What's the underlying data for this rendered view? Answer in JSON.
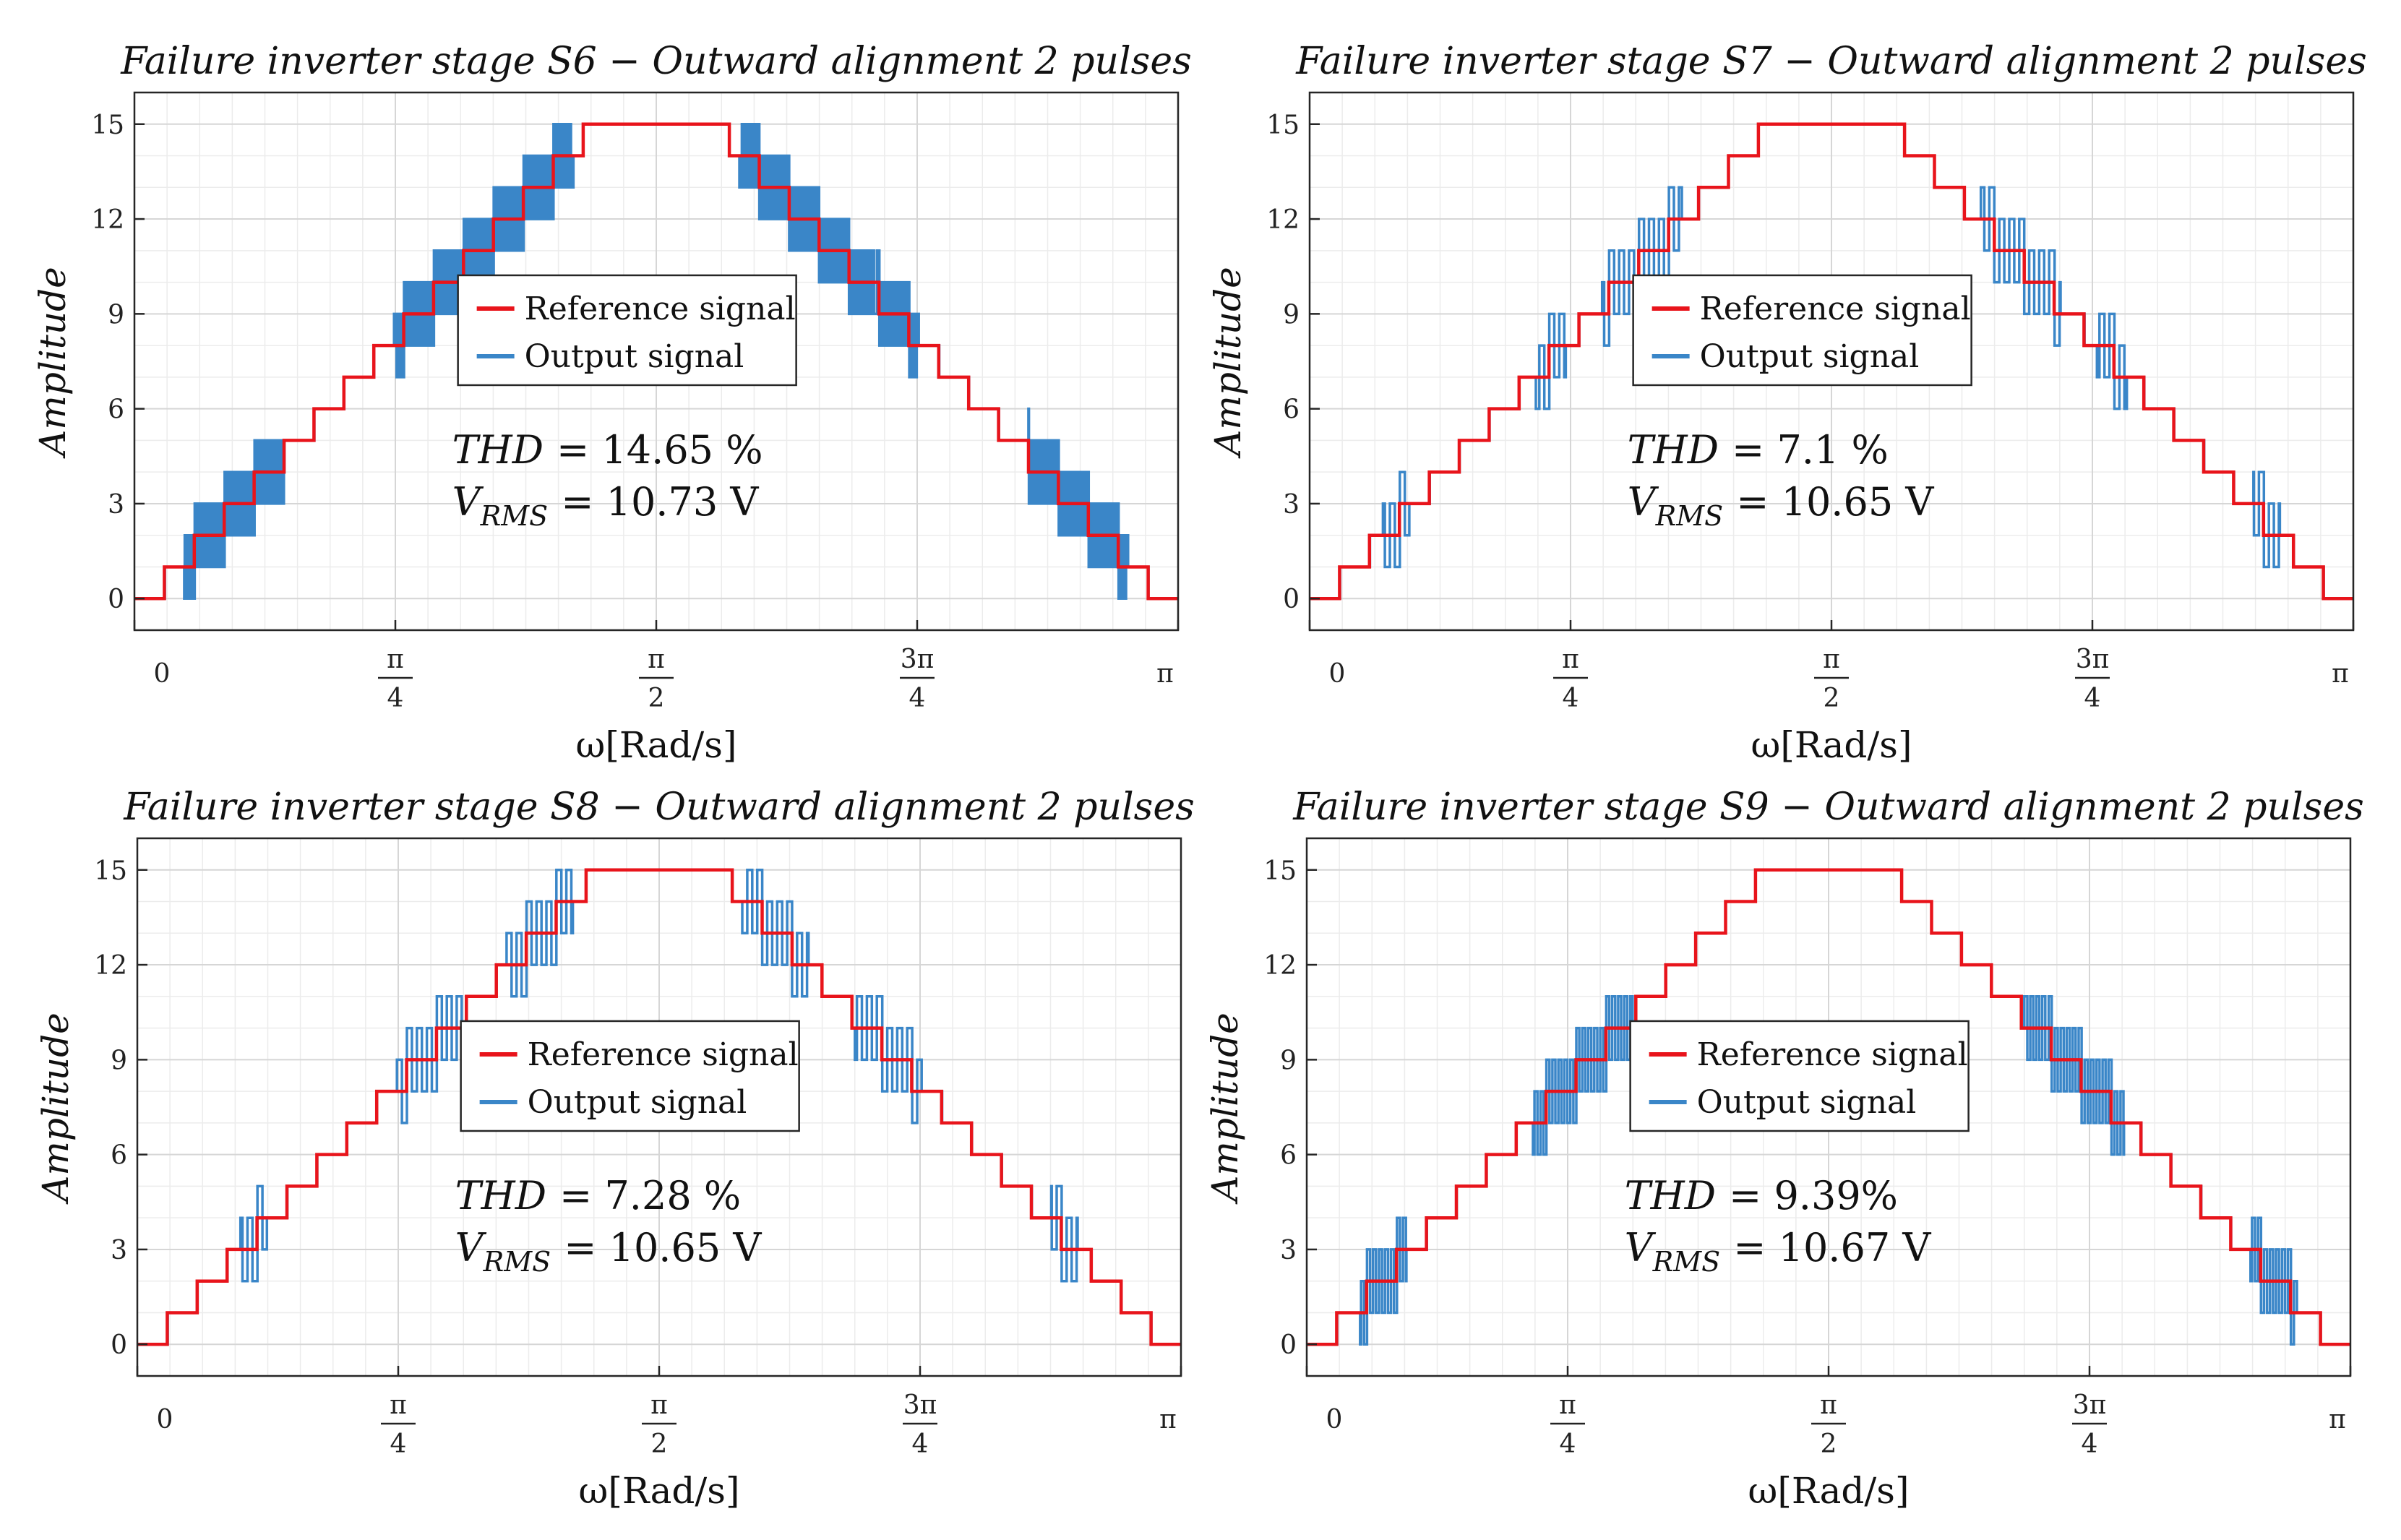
{
  "chart_data": [
    {
      "type": "line",
      "title": "Failure inverter stage S6 − Outward alignment 2 pulses",
      "xlabel": "ω[Rad/s]",
      "ylabel": "Amplitude",
      "xlim": [
        0,
        3.1416
      ],
      "ylim": [
        -1,
        16
      ],
      "yticks": [
        0,
        3,
        6,
        9,
        12,
        15
      ],
      "xticks": [
        {
          "value": 0,
          "num": "0",
          "den": ""
        },
        {
          "value": 0.7854,
          "num": "π",
          "den": "4"
        },
        {
          "value": 1.5708,
          "num": "π",
          "den": "2"
        },
        {
          "value": 2.3562,
          "num": "3π",
          "den": "4"
        },
        {
          "value": 3.1416,
          "num": "π",
          "den": ""
        }
      ],
      "grid": true,
      "legend": {
        "position": "center",
        "entries": [
          "Reference signal",
          "Output signal"
        ]
      },
      "series": [
        {
          "name": "Reference signal",
          "color": "#e8141b",
          "kind": "staircase",
          "levels": 15
        },
        {
          "name": "Output signal",
          "color": "#3a86c8",
          "kind": "pwm",
          "pulse_intervals": [
            [
              0.15,
              0.45
            ],
            [
              0.78,
              1.32
            ],
            [
              1.82,
              2.36
            ],
            [
              2.69,
              2.99
            ]
          ],
          "pulse_count": 6
        }
      ],
      "annotation": {
        "thd_label": "THD",
        "thd_value": "= 14.65 %",
        "vrms_main": "V",
        "vrms_sub": "RMS",
        "vrms_value": "= 10.73 V"
      }
    },
    {
      "type": "line",
      "title": "Failure inverter stage S7 − Outward alignment 2 pulses",
      "xlabel": "ω[Rad/s]",
      "ylabel": "Amplitude",
      "xlim": [
        0,
        3.1416
      ],
      "ylim": [
        -1,
        16
      ],
      "yticks": [
        0,
        3,
        6,
        9,
        12,
        15
      ],
      "xticks": [
        {
          "value": 0,
          "num": "0",
          "den": ""
        },
        {
          "value": 0.7854,
          "num": "π",
          "den": "4"
        },
        {
          "value": 1.5708,
          "num": "π",
          "den": "2"
        },
        {
          "value": 2.3562,
          "num": "3π",
          "den": "4"
        },
        {
          "value": 3.1416,
          "num": "π",
          "den": ""
        }
      ],
      "grid": true,
      "legend": {
        "position": "center",
        "entries": [
          "Reference signal",
          "Output signal"
        ]
      },
      "series": [
        {
          "name": "Reference signal",
          "color": "#e8141b",
          "kind": "staircase",
          "levels": 15
        },
        {
          "name": "Output signal",
          "color": "#3a86c8",
          "kind": "pwm",
          "pulse_intervals": [
            [
              0.22,
              0.3
            ],
            [
              0.68,
              0.77
            ],
            [
              0.88,
              1.12
            ],
            [
              2.02,
              2.26
            ],
            [
              2.37,
              2.46
            ],
            [
              2.84,
              2.92
            ]
          ],
          "pulse_count": 3
        }
      ],
      "annotation": {
        "thd_label": "THD",
        "thd_value": "= 7.1 %",
        "vrms_main": "V",
        "vrms_sub": "RMS",
        "vrms_value": "= 10.65 V"
      }
    },
    {
      "type": "line",
      "title": "Failure inverter stage S8 − Outward alignment 2 pulses",
      "xlabel": "ω[Rad/s]",
      "ylabel": "Amplitude",
      "xlim": [
        0,
        3.1416
      ],
      "ylim": [
        -1,
        16
      ],
      "yticks": [
        0,
        3,
        6,
        9,
        12,
        15
      ],
      "xticks": [
        {
          "value": 0,
          "num": "0",
          "den": ""
        },
        {
          "value": 0.7854,
          "num": "π",
          "den": "4"
        },
        {
          "value": 1.5708,
          "num": "π",
          "den": "2"
        },
        {
          "value": 2.3562,
          "num": "3π",
          "den": "4"
        },
        {
          "value": 3.1416,
          "num": "π",
          "den": ""
        }
      ],
      "grid": true,
      "legend": {
        "position": "center",
        "entries": [
          "Reference signal",
          "Output signal"
        ]
      },
      "series": [
        {
          "name": "Reference signal",
          "color": "#e8141b",
          "kind": "staircase",
          "levels": 15
        },
        {
          "name": "Output signal",
          "color": "#3a86c8",
          "kind": "pwm",
          "pulse_intervals": [
            [
              0.31,
              0.39
            ],
            [
              0.78,
              0.98
            ],
            [
              1.11,
              1.31
            ],
            [
              1.82,
              2.02
            ],
            [
              2.16,
              2.36
            ],
            [
              2.75,
              2.83
            ]
          ],
          "pulse_count": 3
        }
      ],
      "annotation": {
        "thd_label": "THD",
        "thd_value": "= 7.28 %",
        "vrms_main": "V",
        "vrms_sub": "RMS",
        "vrms_value": "= 10.65 V"
      }
    },
    {
      "type": "line",
      "title": "Failure inverter stage S9 − Outward alignment 2 pulses",
      "xlabel": "ω[Rad/s]",
      "ylabel": "Amplitude",
      "xlim": [
        0,
        3.1416
      ],
      "ylim": [
        -1,
        16
      ],
      "yticks": [
        0,
        3,
        6,
        9,
        12,
        15
      ],
      "xticks": [
        {
          "value": 0,
          "num": "0",
          "den": ""
        },
        {
          "value": 0.7854,
          "num": "π",
          "den": "4"
        },
        {
          "value": 1.5708,
          "num": "π",
          "den": "2"
        },
        {
          "value": 2.3562,
          "num": "3π",
          "den": "4"
        },
        {
          "value": 3.1416,
          "num": "π",
          "den": ""
        }
      ],
      "grid": true,
      "legend": {
        "position": "center",
        "entries": [
          "Reference signal",
          "Output signal"
        ]
      },
      "series": [
        {
          "name": "Reference signal",
          "color": "#e8141b",
          "kind": "staircase",
          "levels": 15
        },
        {
          "name": "Output signal",
          "color": "#3a86c8",
          "kind": "pwm",
          "pulse_intervals": [
            [
              0.16,
              0.3
            ],
            [
              0.68,
              0.98
            ],
            [
              2.16,
              2.46
            ],
            [
              2.84,
              2.98
            ]
          ],
          "pulse_count": 5
        }
      ],
      "annotation": {
        "thd_label": "THD",
        "thd_value": "= 9.39%",
        "vrms_main": "V",
        "vrms_sub": "RMS",
        "vrms_value": "= 10.67 V"
      }
    }
  ]
}
